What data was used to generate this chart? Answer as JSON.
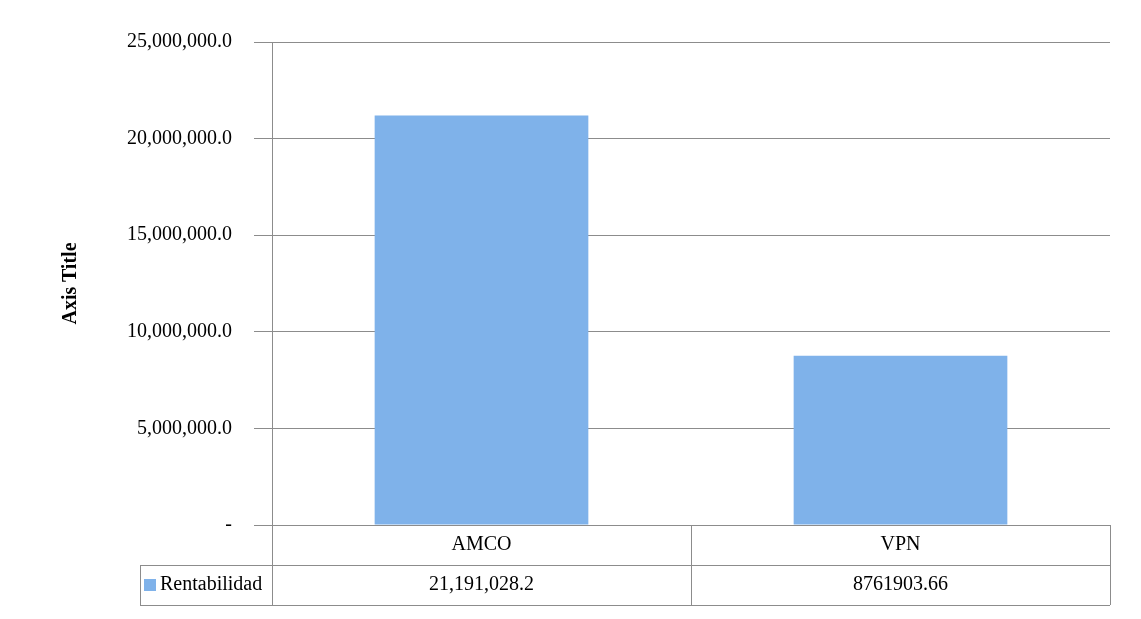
{
  "chart_data": {
    "type": "bar",
    "ylabel": "Axis Title",
    "categories": [
      "AMCO",
      "VPN"
    ],
    "series": [
      {
        "name": "Rentabilidad",
        "color": "#7fb2ea",
        "values": [
          21191028.2,
          8761903.66
        ],
        "value_labels": [
          "21,191,028.2",
          "8761903.66"
        ]
      }
    ],
    "ylim": [
      0,
      25000000
    ],
    "yticks": [
      {
        "value": 0,
        "label": "-"
      },
      {
        "value": 5000000,
        "label": "5,000,000.0"
      },
      {
        "value": 10000000,
        "label": "10,000,000.0"
      },
      {
        "value": 15000000,
        "label": "15,000,000.0"
      },
      {
        "value": 20000000,
        "label": "20,000,000.0"
      },
      {
        "value": 25000000,
        "label": "25,000,000.0"
      }
    ],
    "grid": "y",
    "legend": "bottom left"
  }
}
